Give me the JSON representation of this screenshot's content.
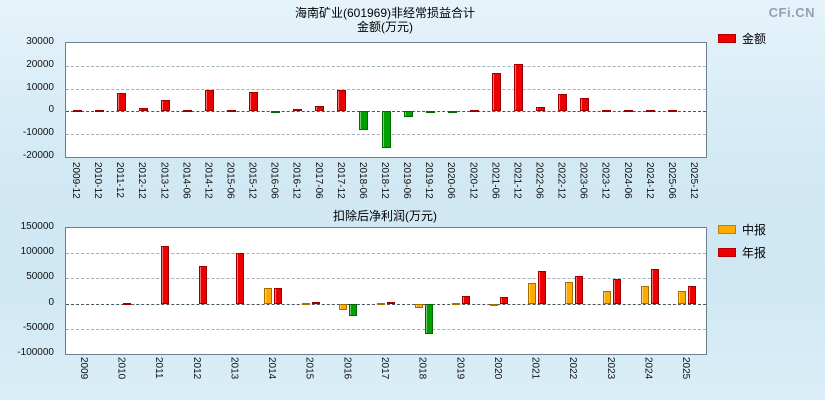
{
  "logo": "CFi.CN",
  "chart_data": [
    {
      "type": "bar",
      "title": "海南矿业(601969)非经常损益合计",
      "subtitle": "金额(万元)",
      "ylim": [
        -20000,
        30000
      ],
      "yticks": [
        30000,
        20000,
        10000,
        0,
        -10000,
        -20000
      ],
      "grid": "dashed",
      "legend_position": "right",
      "categories": [
        "2009-12",
        "2010-12",
        "2011-12",
        "2012-12",
        "2013-12",
        "2014-06",
        "2014-12",
        "2015-06",
        "2015-12",
        "2016-06",
        "2016-12",
        "2017-06",
        "2017-12",
        "2018-06",
        "2018-12",
        "2019-06",
        "2019-12",
        "2020-06",
        "2020-12",
        "2021-06",
        "2021-12",
        "2022-06",
        "2022-12",
        "2023-06",
        "2023-12",
        "2024-06",
        "2024-12",
        "2025-06",
        "2025-12"
      ],
      "series": [
        {
          "name": "金额",
          "color": "#ee0000",
          "negative_color": "#00a000",
          "values": [
            150,
            300,
            8000,
            1500,
            5000,
            300,
            9500,
            400,
            8500,
            -400,
            900,
            2500,
            9500,
            -8000,
            -16000,
            -2500,
            -800,
            -500,
            400,
            17000,
            21000,
            2000,
            7500,
            6000,
            400,
            300,
            500,
            300,
            0
          ]
        }
      ],
      "legend": [
        {
          "label": "金额",
          "color": "#ee0000"
        }
      ]
    },
    {
      "type": "bar",
      "title": "扣除后净利润(万元)",
      "ylim": [
        -100000,
        150000
      ],
      "yticks": [
        150000,
        100000,
        50000,
        0,
        -50000,
        -100000
      ],
      "grid": "dashed",
      "legend_position": "right",
      "categories": [
        "2009",
        "2010",
        "2011",
        "2012",
        "2013",
        "2014",
        "2015",
        "2016",
        "2017",
        "2018",
        "2019",
        "2020",
        "2021",
        "2022",
        "2023",
        "2024",
        "2025"
      ],
      "series": [
        {
          "name": "中报",
          "color": "#ffaa00",
          "negative_color": "#ffaa00",
          "values": [
            0,
            0,
            0,
            0,
            0,
            30000,
            2000,
            -12000,
            2000,
            -8000,
            2000,
            -3000,
            40000,
            42000,
            25000,
            35000,
            25000
          ]
        },
        {
          "name": "年报",
          "color": "#ee0000",
          "negative_color": "#00a000",
          "values": [
            0,
            1000,
            115000,
            75000,
            100000,
            30000,
            4000,
            -25000,
            4000,
            -60000,
            15000,
            13000,
            65000,
            55000,
            48000,
            68000,
            35000
          ]
        }
      ],
      "legend": [
        {
          "label": "中报",
          "color": "#ffaa00"
        },
        {
          "label": "年报",
          "color": "#ee0000"
        }
      ]
    }
  ]
}
